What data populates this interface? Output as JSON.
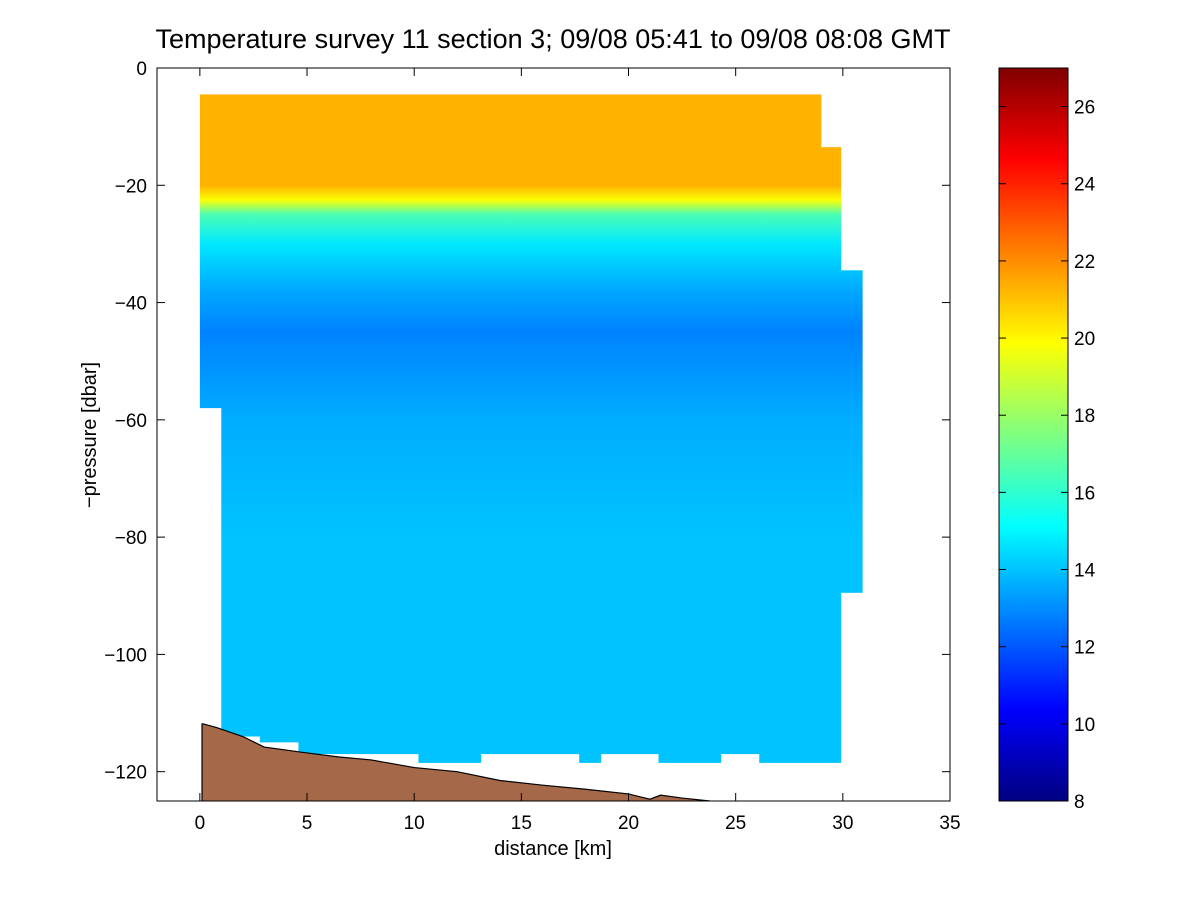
{
  "chart_data": {
    "type": "heatmap",
    "title": "Temperature survey 11 section 3; 09/08 05:41 to 09/08 08:08 GMT",
    "xlabel": "distance [km]",
    "ylabel": "−pressure [dbar]",
    "xlim": [
      -2,
      35
    ],
    "ylim": [
      -125,
      0
    ],
    "x_ticks": [
      0,
      5,
      10,
      15,
      20,
      25,
      30,
      35
    ],
    "y_ticks": [
      0,
      -20,
      -40,
      -60,
      -80,
      -100,
      -120
    ],
    "colorbar": {
      "range": [
        8,
        27
      ],
      "ticks": [
        8,
        10,
        12,
        14,
        16,
        18,
        20,
        22,
        24,
        26
      ],
      "colormap": "jet"
    },
    "grid": false,
    "data_coverage": {
      "top_depth": -4.5,
      "columns": [
        {
          "x0": 0.0,
          "x1": 1.0,
          "bottom": -58
        },
        {
          "x0": 1.0,
          "x1": 2.8,
          "bottom": -114
        },
        {
          "x0": 2.8,
          "x1": 4.6,
          "bottom": -115
        },
        {
          "x0": 4.6,
          "x1": 10.2,
          "bottom": -117
        },
        {
          "x0": 10.2,
          "x1": 13.1,
          "bottom": -118.5
        },
        {
          "x0": 13.1,
          "x1": 17.7,
          "bottom": -117
        },
        {
          "x0": 17.7,
          "x1": 18.7,
          "bottom": -118.5
        },
        {
          "x0": 18.7,
          "x1": 21.4,
          "bottom": -117
        },
        {
          "x0": 21.4,
          "x1": 24.3,
          "bottom": -118.5
        },
        {
          "x0": 24.3,
          "x1": 26.1,
          "bottom": -117
        },
        {
          "x0": 26.1,
          "x1": 29.0,
          "bottom": -118.5
        },
        {
          "x0": 29.0,
          "x1": 29.9,
          "bottom": -118.5,
          "top": -4.5
        },
        {
          "x0": 29.9,
          "x1": 30.9,
          "bottom": -89.5,
          "top": -34.5
        }
      ],
      "notch": {
        "x0": 29.0,
        "x1": 29.9,
        "top": -13.5
      }
    },
    "temperature_profile": {
      "surface_temp": 21.3,
      "deep_temp": 14.0,
      "thermocline_depth_at_x": [
        [
          0,
          -22.5
        ],
        [
          10,
          -24
        ],
        [
          20,
          -27
        ],
        [
          30,
          -31
        ]
      ],
      "minimum_layer_temp": 12.8,
      "minimum_layer_depth": -45
    },
    "bathymetry": {
      "color": "#a5694a",
      "points": [
        [
          0.1,
          -111.8
        ],
        [
          0.8,
          -112.5
        ],
        [
          2.0,
          -114.0
        ],
        [
          3.0,
          -115.8
        ],
        [
          5.0,
          -116.8
        ],
        [
          6.5,
          -117.5
        ],
        [
          8.0,
          -118.0
        ],
        [
          10.0,
          -119.3
        ],
        [
          12.0,
          -120.0
        ],
        [
          14.0,
          -121.5
        ],
        [
          16.0,
          -122.3
        ],
        [
          18.0,
          -123.0
        ],
        [
          20.0,
          -123.8
        ],
        [
          21.0,
          -124.7
        ],
        [
          21.5,
          -124.0
        ],
        [
          22.5,
          -124.5
        ],
        [
          23.8,
          -125.0
        ]
      ]
    }
  },
  "colors": {
    "background": "#ffffff",
    "axis": "#000000",
    "land": "#a5694a"
  }
}
